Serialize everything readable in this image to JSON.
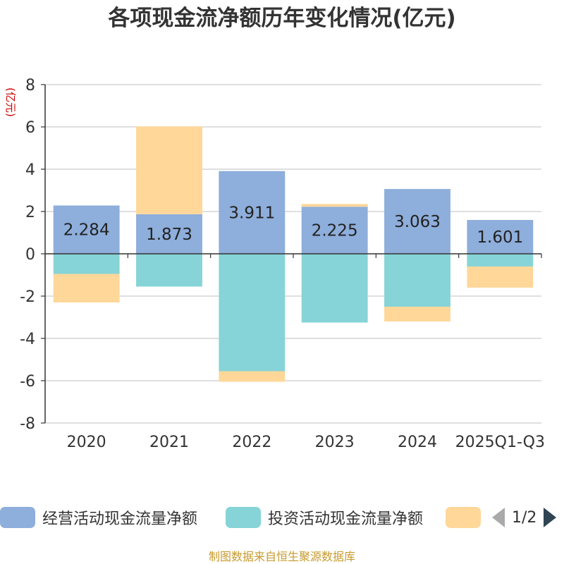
{
  "chart_data": {
    "type": "bar",
    "stacked": true,
    "title": "各项现金流净额历年变化情况(亿元)",
    "ylabel": "(亿元)",
    "xlabel": "",
    "ylim": [
      -8,
      8
    ],
    "yticks": [
      8,
      6,
      4,
      2,
      0,
      -2,
      -4,
      -6,
      -8
    ],
    "categories": [
      "2020",
      "2021",
      "2022",
      "2023",
      "2024",
      "2025Q1-Q3"
    ],
    "series": [
      {
        "name": "经营活动现金流量净额",
        "color": "#8eaedb",
        "values": [
          2.284,
          1.873,
          3.911,
          2.225,
          3.063,
          1.601
        ],
        "labels": [
          "2.284",
          "1.873",
          "3.911",
          "2.225",
          "3.063",
          "1.601"
        ]
      },
      {
        "name": "投资活动现金流量净额",
        "color": "#86d4d7",
        "values": [
          -0.95,
          -1.55,
          -5.55,
          -3.25,
          -2.5,
          -0.6
        ]
      },
      {
        "name": "",
        "color": "#fed799",
        "values": [
          -1.35,
          4.15,
          -0.5,
          0.13,
          -0.7,
          -1.0
        ]
      }
    ],
    "grid": true,
    "legend_position": "bottom"
  },
  "legend": {
    "items": [
      {
        "label": "经营活动现金流量净额",
        "color": "#8eaedb"
      },
      {
        "label": "投资活动现金流量净额",
        "color": "#86d4d7"
      },
      {
        "label": "",
        "color": "#fed799"
      }
    ],
    "pager_text": "1/2"
  },
  "footer": {
    "text": "制图数据来自恒生聚源数据库",
    "color": "#c79a2c"
  },
  "colors": {
    "title": "#333333",
    "ylabel": "#cc0000",
    "axis": "#333333",
    "grid": "#cccccc",
    "pager_inactive": "#aaaaaa",
    "pager_active": "#2f4554"
  }
}
